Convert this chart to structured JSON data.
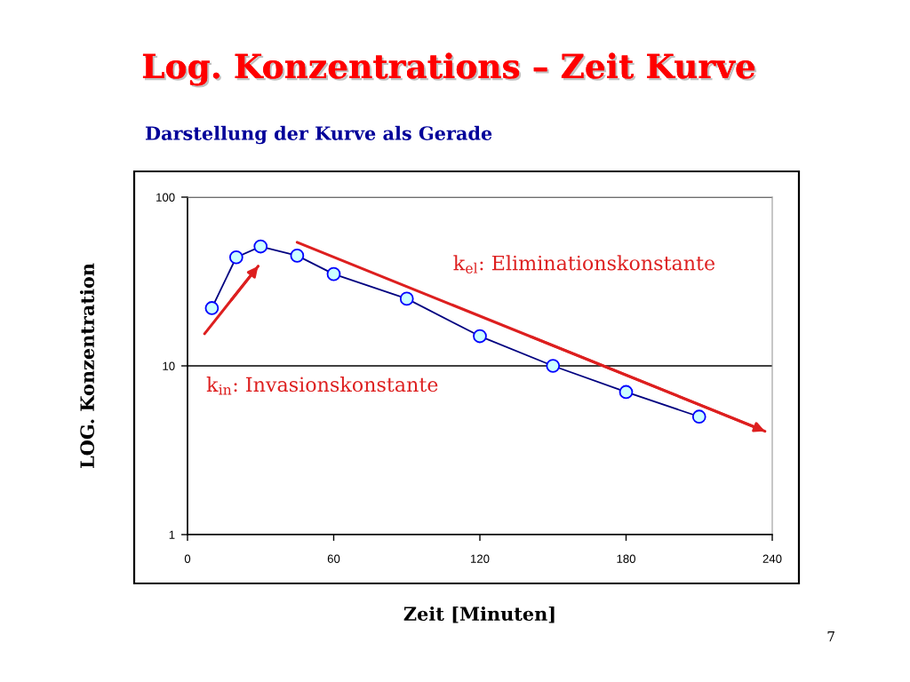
{
  "chart_data": {
    "type": "line",
    "title": "Log. Konzentrations – Zeit Kurve",
    "subtitle": "Darstellung der Kurve als Gerade",
    "xlabel": "Zeit [Minuten]",
    "ylabel": "LOG. Konzentration",
    "series": [
      {
        "color": "#000080",
        "marker": "circle",
        "x": [
          10,
          20,
          30,
          45,
          60,
          90,
          120,
          150,
          180,
          210
        ],
        "values": [
          22,
          44,
          51,
          45,
          35,
          25,
          15,
          10,
          7,
          5
        ]
      },
      {
        "name": "k$_{in}$: Invasionskonstante",
        "color": "#dd1f1f",
        "marker": "none",
        "x": [
          7,
          29
        ],
        "values": [
          15.5,
          39
        ]
      },
      {
        "name": "k$_{el}$: Eliminationskonstante",
        "color": "#dd1f1f",
        "marker": "none",
        "x": [
          45,
          237
        ],
        "values": [
          54,
          4.1
        ]
      }
    ],
    "xlim": [
      0,
      240
    ],
    "xticks": [
      0,
      60,
      120,
      180,
      240
    ],
    "ylim": [
      1,
      100
    ],
    "yticks": [
      1,
      10,
      100
    ],
    "log": true,
    "grid": "y",
    "line_style": "solid",
    "annotations": [
      "7"
    ]
  }
}
